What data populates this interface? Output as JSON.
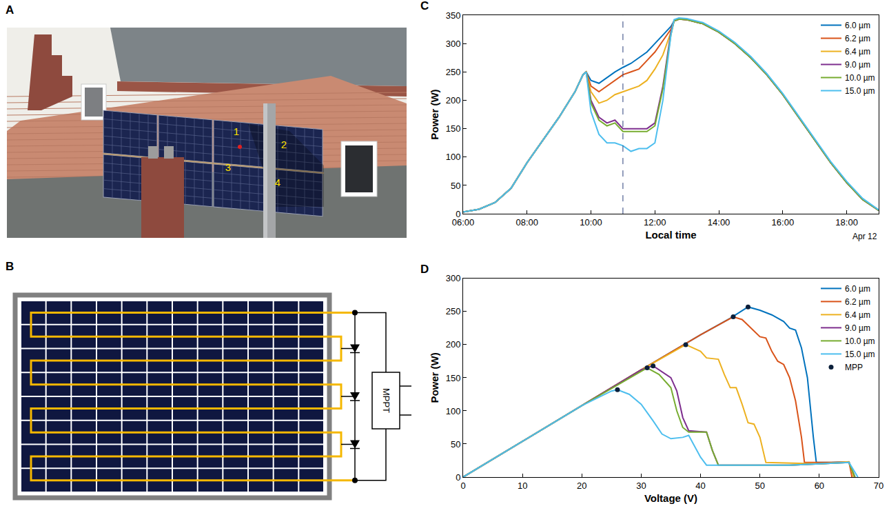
{
  "panel_a": {
    "label": "A",
    "markers": [
      "1",
      "2",
      "3",
      "4"
    ]
  },
  "panel_b": {
    "label": "B",
    "box": "MPPT"
  },
  "chart_data": [
    {
      "panel": "C",
      "type": "line",
      "x_label": "Local time",
      "y_label": "Power (W)",
      "annotation": "Apr 12",
      "xlim": [
        6,
        19
      ],
      "xticks": [
        {
          "value": 6,
          "label": "06:00"
        },
        {
          "value": 8,
          "label": "08:00"
        },
        {
          "value": 10,
          "label": "10:00"
        },
        {
          "value": 12,
          "label": "12:00"
        },
        {
          "value": 14,
          "label": "14:00"
        },
        {
          "value": 16,
          "label": "16:00"
        },
        {
          "value": 18,
          "label": "18:00"
        }
      ],
      "ylim": [
        0,
        350
      ],
      "yticks": [
        0,
        50,
        100,
        150,
        200,
        250,
        300,
        350
      ],
      "vline": 11,
      "legend": "top-right",
      "x": [
        6,
        6.5,
        7,
        7.5,
        8,
        8.5,
        9,
        9.5,
        9.75,
        9.85,
        10,
        10.25,
        10.5,
        10.75,
        11,
        11.25,
        11.5,
        11.75,
        12,
        12.25,
        12.5,
        12.6,
        12.75,
        13,
        13.5,
        14,
        14.5,
        15,
        15.5,
        16,
        16.5,
        17,
        17.5,
        18,
        18.5,
        19
      ],
      "series": [
        {
          "name": "6.0 µm",
          "color": "#0072BD",
          "values": [
            3,
            8,
            20,
            45,
            90,
            130,
            170,
            215,
            245,
            250,
            235,
            230,
            240,
            250,
            258,
            265,
            275,
            285,
            300,
            315,
            330,
            340,
            343,
            342,
            335,
            320,
            300,
            275,
            245,
            210,
            170,
            130,
            90,
            55,
            25,
            6
          ]
        },
        {
          "name": "6.2 µm",
          "color": "#D95319",
          "values": [
            3,
            8,
            20,
            45,
            90,
            130,
            170,
            215,
            245,
            250,
            225,
            215,
            225,
            235,
            245,
            250,
            255,
            270,
            285,
            305,
            325,
            340,
            343,
            342,
            335,
            320,
            300,
            275,
            245,
            210,
            170,
            130,
            90,
            55,
            25,
            6
          ]
        },
        {
          "name": "6.4 µm",
          "color": "#EDB120",
          "values": [
            3,
            8,
            20,
            45,
            90,
            130,
            170,
            215,
            245,
            250,
            215,
            195,
            200,
            210,
            215,
            220,
            225,
            235,
            255,
            280,
            320,
            340,
            343,
            342,
            335,
            320,
            300,
            275,
            245,
            210,
            170,
            130,
            90,
            55,
            25,
            6
          ]
        },
        {
          "name": "9.0 µm",
          "color": "#7E2F8E",
          "values": [
            3,
            8,
            20,
            45,
            90,
            130,
            170,
            215,
            245,
            250,
            200,
            170,
            160,
            165,
            150,
            150,
            150,
            150,
            160,
            225,
            320,
            340,
            343,
            342,
            335,
            320,
            300,
            275,
            245,
            210,
            170,
            130,
            90,
            55,
            25,
            6
          ]
        },
        {
          "name": "10.0 µm",
          "color": "#77AC30",
          "values": [
            3,
            8,
            20,
            45,
            90,
            130,
            170,
            215,
            245,
            250,
            195,
            165,
            155,
            160,
            145,
            145,
            145,
            145,
            155,
            220,
            315,
            340,
            343,
            342,
            335,
            320,
            300,
            275,
            245,
            210,
            170,
            130,
            90,
            55,
            25,
            6
          ]
        },
        {
          "name": "15.0 µm",
          "color": "#4DBEEE",
          "values": [
            3,
            8,
            20,
            45,
            90,
            130,
            170,
            215,
            245,
            250,
            180,
            140,
            125,
            125,
            120,
            110,
            115,
            115,
            125,
            200,
            315,
            342,
            345,
            344,
            337,
            322,
            302,
            277,
            247,
            212,
            172,
            132,
            92,
            57,
            27,
            7
          ]
        }
      ]
    },
    {
      "panel": "D",
      "type": "line",
      "x_label": "Voltage (V)",
      "y_label": "Power (W)",
      "xlim": [
        0,
        70
      ],
      "xticks": [
        0,
        10,
        20,
        30,
        40,
        50,
        60,
        70
      ],
      "ylim": [
        0,
        300
      ],
      "yticks": [
        0,
        50,
        100,
        150,
        200,
        250,
        300
      ],
      "legend": "top-right",
      "series": [
        {
          "name": "6.0 µm",
          "color": "#0072BD",
          "x": [
            0,
            10,
            20,
            30,
            40,
            45,
            48,
            50,
            52,
            54,
            55,
            56,
            57,
            58,
            59,
            59.5,
            62,
            65,
            65.5,
            66
          ],
          "values": [
            0,
            54,
            108,
            162,
            215,
            240,
            257,
            252,
            245,
            235,
            225,
            222,
            195,
            150,
            60,
            22,
            22,
            23,
            10,
            0
          ]
        },
        {
          "name": "6.2 µm",
          "color": "#D95319",
          "x": [
            0,
            10,
            20,
            30,
            40,
            45.5,
            47,
            48.5,
            50,
            51,
            52,
            53,
            54,
            55,
            56,
            57,
            57.5,
            62,
            65,
            65.5
          ],
          "values": [
            0,
            54,
            108,
            162,
            215,
            242,
            238,
            225,
            212,
            210,
            190,
            175,
            170,
            150,
            115,
            60,
            22,
            22,
            23,
            0
          ]
        },
        {
          "name": "6.4 µm",
          "color": "#EDB120",
          "x": [
            0,
            10,
            20,
            30,
            37.5,
            40,
            41,
            43,
            44,
            45,
            46,
            47,
            48,
            49,
            50,
            51,
            60,
            65,
            65.8
          ],
          "values": [
            0,
            54,
            108,
            162,
            200,
            190,
            180,
            178,
            155,
            135,
            135,
            110,
            82,
            80,
            60,
            22,
            20,
            23,
            0
          ]
        },
        {
          "name": "9.0 µm",
          "color": "#7E2F8E",
          "x": [
            0,
            10,
            20,
            30,
            32,
            35,
            36,
            37,
            38,
            41,
            42,
            43,
            55,
            65,
            66
          ],
          "values": [
            0,
            54,
            108,
            162,
            168,
            150,
            130,
            90,
            70,
            68,
            40,
            18,
            18,
            22,
            0
          ]
        },
        {
          "name": "10.0 µm",
          "color": "#77AC30",
          "x": [
            0,
            10,
            20,
            31,
            33,
            35,
            36,
            37,
            38,
            41,
            42,
            43,
            55,
            65,
            66
          ],
          "values": [
            0,
            54,
            108,
            165,
            155,
            135,
            100,
            75,
            68,
            68,
            40,
            18,
            18,
            22,
            0
          ]
        },
        {
          "name": "15.0 µm",
          "color": "#4DBEEE",
          "x": [
            0,
            10,
            20,
            25,
            26,
            28,
            30,
            32,
            33.5,
            35,
            37,
            38,
            40,
            41,
            55,
            65,
            66.5
          ],
          "values": [
            0,
            54,
            108,
            130,
            132,
            125,
            110,
            85,
            65,
            58,
            60,
            63,
            30,
            18,
            18,
            22,
            0
          ]
        },
        {
          "name": "MPP",
          "type": "scatter",
          "marker": "circle",
          "color": "#0b1f3a",
          "x": [
            48,
            45.5,
            37.5,
            32,
            31,
            26
          ],
          "values": [
            257,
            242,
            200,
            168,
            165,
            132
          ]
        }
      ]
    }
  ]
}
